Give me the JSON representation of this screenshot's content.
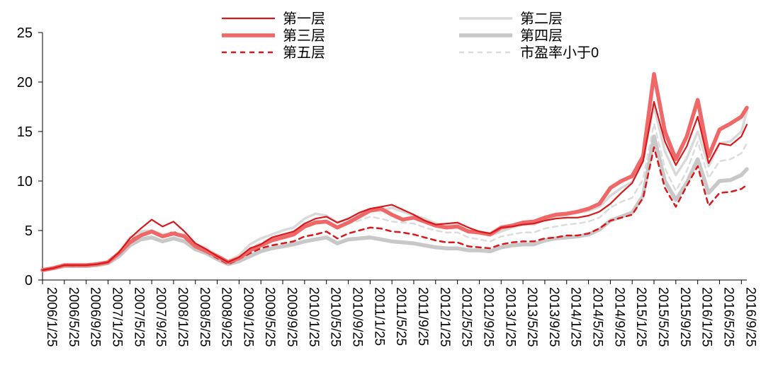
{
  "chart_data": {
    "type": "line",
    "title": "",
    "xlabel": "",
    "ylabel": "",
    "ylim": [
      0,
      25
    ],
    "y_ticks": [
      0,
      5,
      10,
      15,
      20,
      25
    ],
    "grid": false,
    "legend_position": "top",
    "x_tick_labels": [
      "2006/1/25",
      "2006/5/25",
      "2006/9/25",
      "2007/1/25",
      "2007/5/25",
      "2007/9/25",
      "2008/1/25",
      "2008/5/25",
      "2008/9/25",
      "2009/1/25",
      "2009/5/25",
      "2009/9/25",
      "2010/1/25",
      "2010/5/25",
      "2010/9/25",
      "2011/1/25",
      "2011/5/25",
      "2011/9/25",
      "2012/1/25",
      "2012/5/25",
      "2012/9/25",
      "2013/1/25",
      "2013/5/25",
      "2013/9/25",
      "2014/1/25",
      "2014/5/25",
      "2014/9/25",
      "2015/1/25",
      "2015/5/25",
      "2015/9/25",
      "2016/1/25",
      "2016/5/25",
      "2016/9/25"
    ],
    "x": [
      "2006/1/25",
      "2006/3/25",
      "2006/5/25",
      "2006/7/25",
      "2006/9/25",
      "2006/11/25",
      "2007/1/25",
      "2007/3/25",
      "2007/5/25",
      "2007/7/25",
      "2007/9/25",
      "2007/11/25",
      "2008/1/25",
      "2008/3/25",
      "2008/5/25",
      "2008/7/25",
      "2008/9/25",
      "2008/11/25",
      "2009/1/25",
      "2009/3/25",
      "2009/5/25",
      "2009/7/25",
      "2009/9/25",
      "2009/11/25",
      "2010/1/25",
      "2010/3/25",
      "2010/5/25",
      "2010/7/25",
      "2010/9/25",
      "2010/11/25",
      "2011/1/25",
      "2011/3/25",
      "2011/5/25",
      "2011/7/25",
      "2011/9/25",
      "2011/11/25",
      "2012/1/25",
      "2012/3/25",
      "2012/5/25",
      "2012/7/25",
      "2012/9/25",
      "2012/11/25",
      "2013/1/25",
      "2013/3/25",
      "2013/5/25",
      "2013/7/25",
      "2013/9/25",
      "2013/11/25",
      "2014/1/25",
      "2014/3/25",
      "2014/5/25",
      "2014/7/25",
      "2014/9/25",
      "2014/11/25",
      "2015/1/25",
      "2015/3/25",
      "2015/5/25",
      "2015/7/25",
      "2015/9/25",
      "2015/11/25",
      "2016/1/25",
      "2016/3/25",
      "2016/5/25",
      "2016/7/25",
      "2016/9/25",
      "2016/10/25"
    ],
    "series": [
      {
        "name": "第一层",
        "color": "#d7191c",
        "style": "solid-thin",
        "values": [
          1.0,
          1.2,
          1.5,
          1.5,
          1.5,
          1.6,
          1.8,
          2.8,
          4.2,
          5.2,
          6.1,
          5.4,
          5.9,
          4.9,
          3.7,
          3.1,
          2.4,
          1.8,
          2.3,
          3.2,
          3.6,
          4.3,
          4.6,
          4.9,
          5.7,
          6.2,
          6.4,
          5.8,
          6.2,
          6.8,
          7.2,
          7.4,
          7.6,
          7.1,
          6.6,
          6.0,
          5.6,
          5.7,
          5.8,
          5.3,
          4.9,
          4.7,
          5.3,
          5.4,
          5.6,
          5.7,
          6.0,
          6.2,
          6.3,
          6.3,
          6.5,
          6.9,
          7.7,
          8.8,
          9.8,
          12.0,
          18.0,
          14.0,
          11.6,
          13.5,
          16.5,
          11.8,
          13.8,
          13.6,
          14.5,
          15.7
        ]
      },
      {
        "name": "第二层",
        "color": "#d9d9d9",
        "style": "solid-medium",
        "values": [
          1.0,
          1.2,
          1.5,
          1.5,
          1.5,
          1.6,
          1.8,
          2.8,
          4.3,
          4.9,
          5.0,
          4.6,
          4.7,
          4.6,
          3.6,
          3.2,
          2.5,
          1.9,
          2.5,
          3.6,
          4.2,
          4.6,
          5.0,
          5.3,
          6.2,
          6.7,
          6.5,
          5.8,
          6.2,
          6.6,
          7.0,
          7.0,
          7.3,
          6.9,
          6.5,
          6.2,
          5.7,
          5.6,
          5.6,
          5.0,
          4.7,
          4.5,
          4.9,
          5.3,
          5.6,
          5.6,
          6.1,
          6.4,
          6.6,
          6.8,
          7.0,
          7.4,
          8.5,
          9.3,
          9.9,
          12.5,
          17.5,
          13.0,
          10.6,
          12.3,
          15.0,
          11.5,
          13.8,
          14.0,
          15.0,
          17.0
        ]
      },
      {
        "name": "第三层",
        "color": "#f06767",
        "style": "solid-thick",
        "values": [
          1.0,
          1.2,
          1.5,
          1.5,
          1.5,
          1.6,
          1.8,
          2.7,
          3.8,
          4.5,
          4.9,
          4.4,
          4.7,
          4.4,
          3.4,
          2.9,
          2.4,
          1.8,
          2.2,
          3.0,
          3.5,
          4.0,
          4.3,
          4.6,
          5.4,
          5.8,
          5.9,
          5.3,
          5.8,
          6.4,
          7.0,
          7.2,
          6.6,
          6.1,
          6.3,
          5.9,
          5.5,
          5.3,
          5.4,
          4.9,
          4.8,
          4.6,
          5.3,
          5.5,
          5.8,
          5.9,
          6.3,
          6.6,
          6.7,
          6.9,
          7.2,
          7.7,
          9.3,
          10.0,
          10.5,
          12.5,
          20.8,
          15.0,
          12.2,
          14.5,
          18.2,
          12.5,
          15.2,
          15.8,
          16.5,
          17.4
        ]
      },
      {
        "name": "第四层",
        "color": "#c8c8c8",
        "style": "solid-thick",
        "values": [
          1.0,
          1.2,
          1.4,
          1.4,
          1.4,
          1.5,
          1.7,
          2.4,
          3.5,
          4.1,
          4.3,
          3.9,
          4.2,
          3.9,
          3.1,
          2.7,
          2.1,
          1.6,
          1.9,
          2.4,
          2.9,
          3.2,
          3.4,
          3.6,
          3.9,
          4.1,
          4.3,
          3.7,
          4.1,
          4.2,
          4.3,
          4.1,
          3.9,
          3.8,
          3.7,
          3.5,
          3.3,
          3.2,
          3.2,
          3.0,
          3.0,
          2.9,
          3.3,
          3.5,
          3.6,
          3.6,
          4.0,
          4.2,
          4.3,
          4.4,
          4.6,
          5.1,
          6.0,
          6.4,
          6.8,
          8.5,
          14.5,
          10.0,
          8.1,
          9.8,
          12.2,
          8.8,
          10.0,
          10.1,
          10.6,
          11.2
        ]
      },
      {
        "name": "第五层",
        "color": "#d7191c",
        "style": "dashed",
        "values": [
          1.0,
          1.2,
          1.4,
          1.4,
          1.4,
          1.5,
          1.7,
          2.6,
          4.0,
          4.6,
          4.9,
          4.4,
          4.9,
          4.3,
          3.3,
          2.8,
          2.2,
          1.6,
          2.1,
          2.7,
          3.2,
          3.5,
          3.7,
          3.9,
          4.4,
          4.6,
          4.9,
          4.2,
          4.7,
          5.0,
          5.3,
          5.2,
          4.9,
          4.8,
          4.6,
          4.3,
          4.0,
          3.8,
          3.8,
          3.4,
          3.3,
          3.2,
          3.6,
          3.8,
          3.9,
          3.9,
          4.2,
          4.3,
          4.5,
          4.5,
          4.7,
          5.2,
          6.0,
          6.3,
          6.6,
          8.3,
          13.4,
          9.3,
          7.4,
          9.5,
          11.5,
          7.5,
          8.8,
          8.9,
          9.2,
          9.6
        ]
      },
      {
        "name": "市盈率小于0",
        "color": "#dcdcdc",
        "style": "dashed",
        "values": [
          1.0,
          1.2,
          1.5,
          1.5,
          1.5,
          1.6,
          1.8,
          2.8,
          4.2,
          4.7,
          4.9,
          4.5,
          4.7,
          4.5,
          3.5,
          3.0,
          2.4,
          1.8,
          2.3,
          3.2,
          3.8,
          4.2,
          4.5,
          4.8,
          5.6,
          6.0,
          6.0,
          5.2,
          5.7,
          6.0,
          6.4,
          6.2,
          5.9,
          5.8,
          5.7,
          5.3,
          5.0,
          4.8,
          4.8,
          4.3,
          4.1,
          3.9,
          4.4,
          4.6,
          4.8,
          4.8,
          5.2,
          5.4,
          5.6,
          5.7,
          5.9,
          6.3,
          7.3,
          7.9,
          8.3,
          10.2,
          15.8,
          11.3,
          9.0,
          11.0,
          14.0,
          10.3,
          12.0,
          12.2,
          12.8,
          13.8
        ]
      }
    ]
  }
}
